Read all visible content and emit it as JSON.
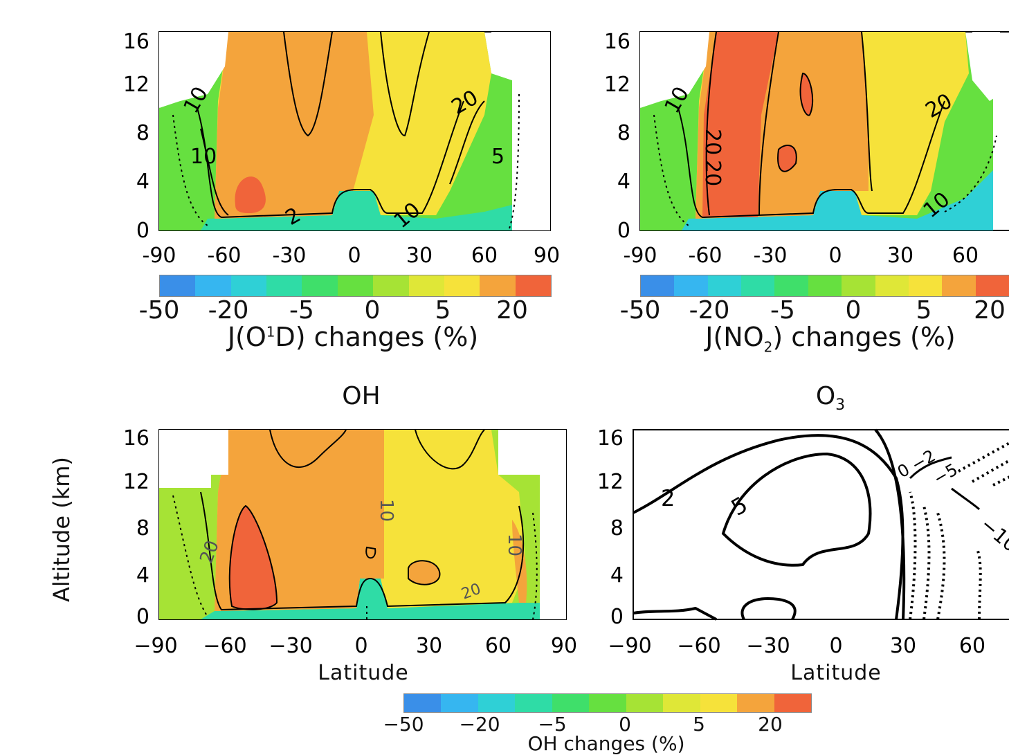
{
  "colorscale": [
    "#3a8fe8",
    "#36b6f0",
    "#2fd0d6",
    "#2fdca6",
    "#3fdf6a",
    "#66e040",
    "#a6e335",
    "#dfe737",
    "#f6e23a",
    "#f4a43c",
    "#f0643a"
  ],
  "chart_data": [
    {
      "type": "heatmap",
      "panel": "J(O1D)",
      "title": "",
      "xlabel": "",
      "ylabel": "",
      "x_ticks": [
        "-90",
        "-60",
        "-30",
        "0",
        "30",
        "60",
        "90"
      ],
      "y_ticks": [
        "0",
        "4",
        "8",
        "12",
        "16"
      ],
      "xlim": [
        -90,
        90
      ],
      "ylim": [
        0,
        16
      ],
      "contour_labels": [
        "10",
        "10",
        "20",
        "5",
        "2",
        "10"
      ],
      "colorbar": {
        "ticks": [
          "-50",
          "-20",
          "-5",
          "0",
          "5",
          "20"
        ],
        "title_main": "J(O",
        "title_sup": "1",
        "title_rest": "D) changes (%)"
      }
    },
    {
      "type": "heatmap",
      "panel": "J(NO2)",
      "title": "",
      "xlabel": "",
      "ylabel": "",
      "x_ticks": [
        "-90",
        "-60",
        "-30",
        "0",
        "30",
        "60"
      ],
      "y_ticks": [
        "0",
        "4",
        "8",
        "12",
        "16"
      ],
      "xlim": [
        -90,
        90
      ],
      "ylim": [
        0,
        16
      ],
      "contour_labels": [
        "10",
        "20",
        "20",
        "20",
        "10"
      ],
      "colorbar": {
        "ticks": [
          "-50",
          "-20",
          "-5",
          "0",
          "5",
          "20"
        ],
        "title_main": "J(NO",
        "title_sub": "2",
        "title_rest": ") changes (%)"
      }
    },
    {
      "type": "heatmap",
      "panel": "OH",
      "title": "OH",
      "xlabel": "Latitude",
      "ylabel": "Altitude (km)",
      "x_ticks": [
        "−90",
        "−60",
        "−30",
        "0",
        "30",
        "60",
        "90"
      ],
      "y_ticks": [
        "0",
        "4",
        "8",
        "12",
        "16"
      ],
      "xlim": [
        -90,
        90
      ],
      "ylim": [
        0,
        16
      ],
      "contour_labels": [
        "10",
        "20",
        "10",
        "20"
      ],
      "colorbar": {
        "ticks": [
          "−50",
          "−20",
          "−5",
          "0",
          "5",
          "20"
        ],
        "title": "OH changes (%)"
      }
    },
    {
      "type": "line",
      "panel": "O3",
      "title_main": "O",
      "title_sub": "3",
      "xlabel": "Latitude",
      "x_ticks": [
        "−90",
        "−60",
        "−30",
        "0",
        "30",
        "60"
      ],
      "y_ticks": [
        "0",
        "4",
        "8",
        "12",
        "16"
      ],
      "xlim": [
        -90,
        90
      ],
      "ylim": [
        0,
        16
      ],
      "contour_labels": [
        "2",
        "5",
        "0",
        "−2",
        "−5",
        "−10"
      ]
    }
  ]
}
